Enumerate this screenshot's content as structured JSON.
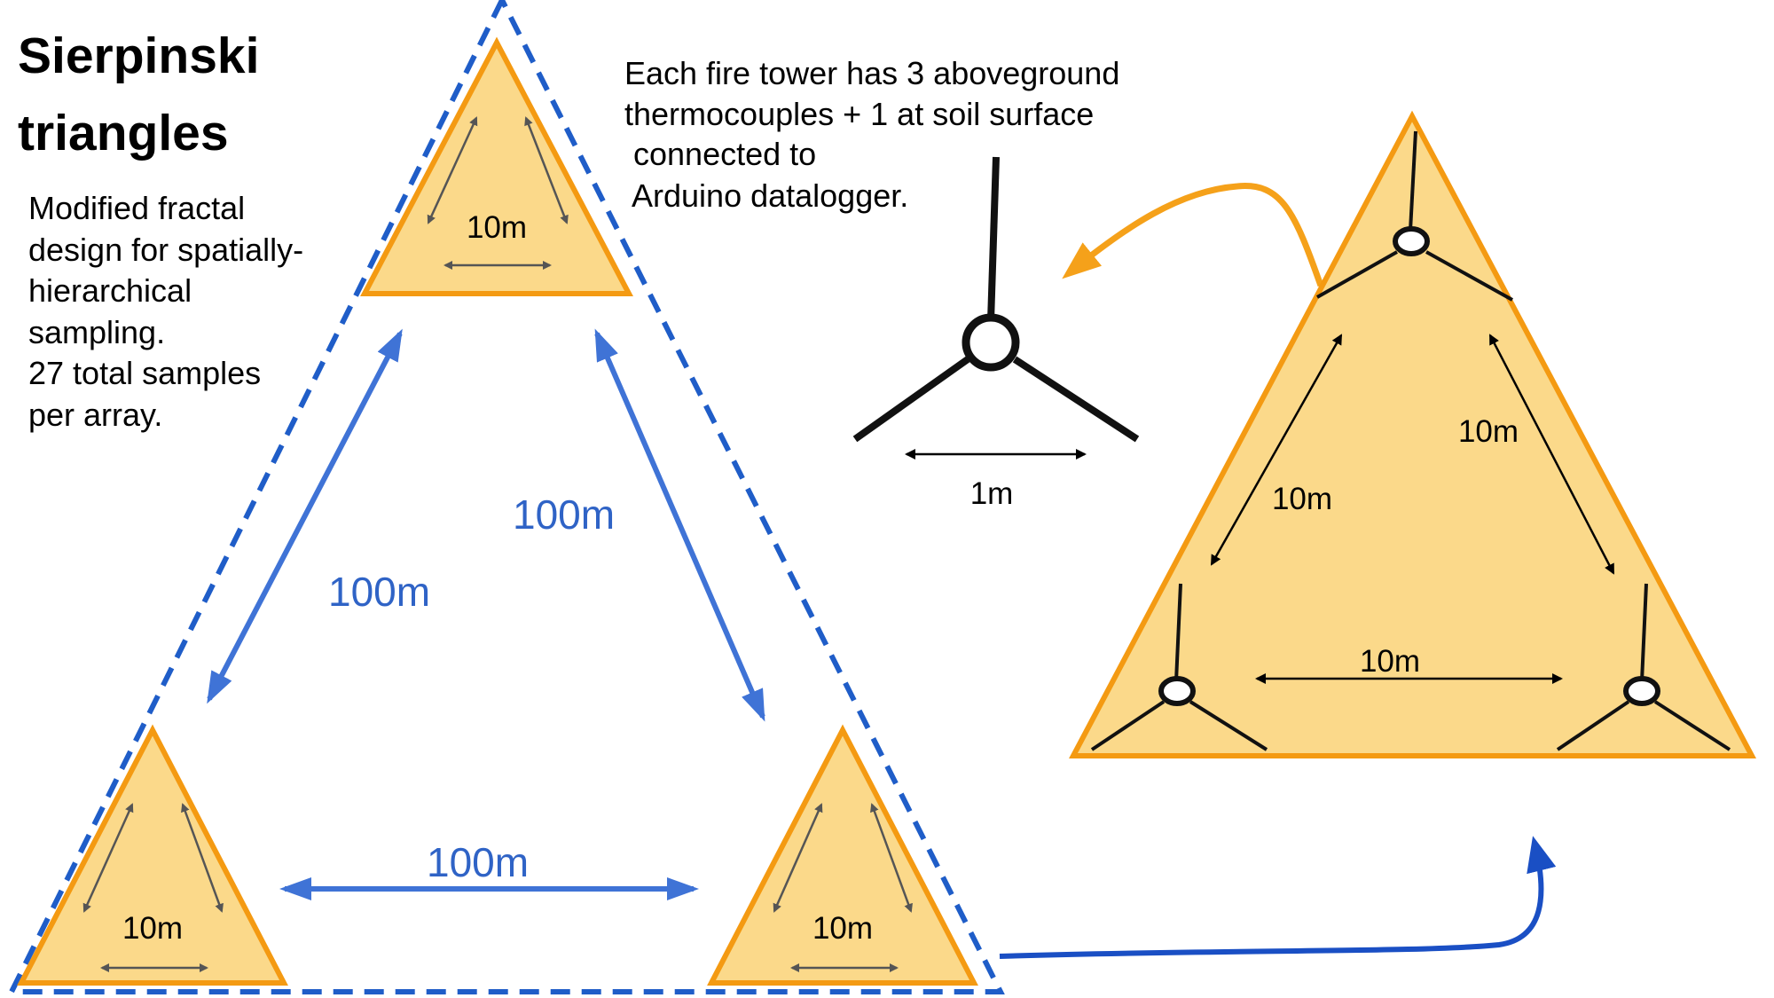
{
  "title_line1": "Sierpinski",
  "title_line2": "triangles",
  "description_lines": [
    "Modified fractal",
    "design for spatially-",
    "hierarchical",
    "sampling.",
    "27 total samples",
    "per array."
  ],
  "tower_note_lines": [
    "Each fire tower has 3 aboveground",
    "thermocouples + 1 at soil surface",
    " connected to",
    "Arduino datalogger."
  ],
  "large_spacing_labels": {
    "left": "100m",
    "right": "100m",
    "bottom": "100m"
  },
  "small_triangle_labels": {
    "top": "10m",
    "bottom_left": "10m",
    "bottom_right": "10m"
  },
  "tower_scale_label": "1m",
  "detail_triangle_labels": {
    "left": "10m",
    "right": "10m",
    "bottom": "10m"
  },
  "colors": {
    "triangle_fill": "#fbd98a",
    "triangle_stroke": "#f49a12",
    "blue": "#2f63c6",
    "dark_blue": "#1a4fc4",
    "orange_arrow": "#f5a11a"
  }
}
